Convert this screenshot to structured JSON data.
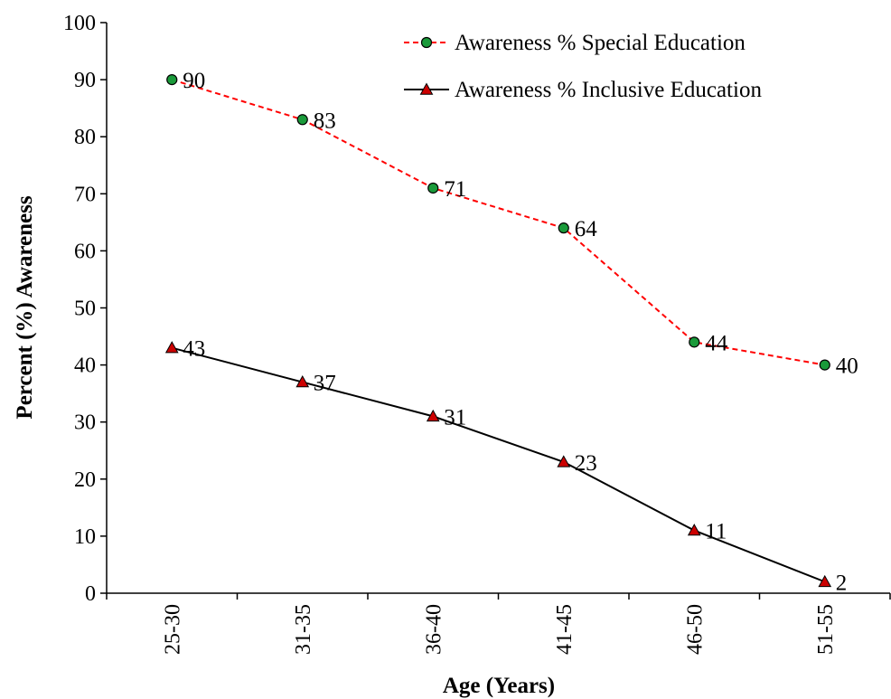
{
  "chart_data": {
    "type": "line",
    "title": "",
    "xlabel": "Age (Years)",
    "ylabel": "Percent (%) Awareness",
    "ylim": [
      0,
      100
    ],
    "ytick_step": 10,
    "categories": [
      "25-30",
      "31-35",
      "36-40",
      "41-45",
      "46-50",
      "51-55"
    ],
    "grid": false,
    "legend_position": "top-right",
    "series": [
      {
        "name": "Awareness % Special Education",
        "values": [
          90,
          83,
          71,
          64,
          44,
          40
        ],
        "line_color": "#ff0000",
        "line_style": "dashed",
        "marker": "circle",
        "marker_color": "#1a9a3a"
      },
      {
        "name": "Awareness % Inclusive Education",
        "values": [
          43,
          37,
          31,
          23,
          11,
          2
        ],
        "line_color": "#000000",
        "line_style": "solid",
        "marker": "triangle",
        "marker_color": "#cc0000"
      }
    ]
  }
}
